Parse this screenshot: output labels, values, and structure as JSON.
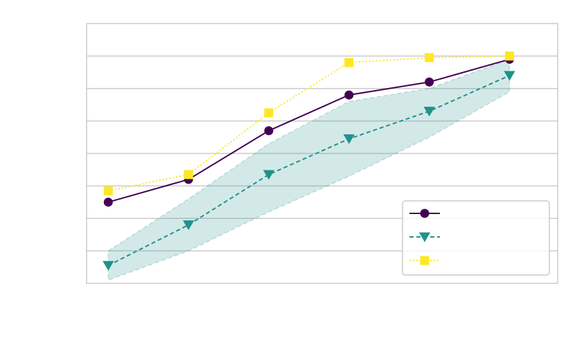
{
  "chart_data": {
    "type": "line",
    "title": "",
    "xlabel": "",
    "ylabel": "",
    "x": [
      1,
      2,
      3,
      4,
      5,
      6
    ],
    "xlim": [
      0.73,
      6.6
    ],
    "ylim": [
      0,
      8
    ],
    "grid": "horizontal",
    "legend_position": "lower-right",
    "series": [
      {
        "key": "circle-series",
        "values": [
          2.5,
          3.2,
          4.7,
          5.8,
          6.2,
          6.9
        ],
        "color": "#440154",
        "marker": "circle",
        "dash": "solid"
      },
      {
        "key": "triangle-series",
        "values": [
          0.55,
          1.8,
          3.35,
          4.45,
          5.3,
          6.4
        ],
        "color": "#21918c",
        "marker": "triangle-down",
        "dash": "dashed",
        "band_lower": [
          0.1,
          1.0,
          2.2,
          3.3,
          4.5,
          5.9
        ],
        "band_upper": [
          1.0,
          2.6,
          4.3,
          5.6,
          6.0,
          6.9
        ]
      },
      {
        "key": "square-series",
        "values": [
          2.85,
          3.35,
          5.25,
          6.8,
          6.95,
          7.0
        ],
        "color": "#fde725",
        "marker": "square",
        "dash": "dotted"
      }
    ]
  }
}
